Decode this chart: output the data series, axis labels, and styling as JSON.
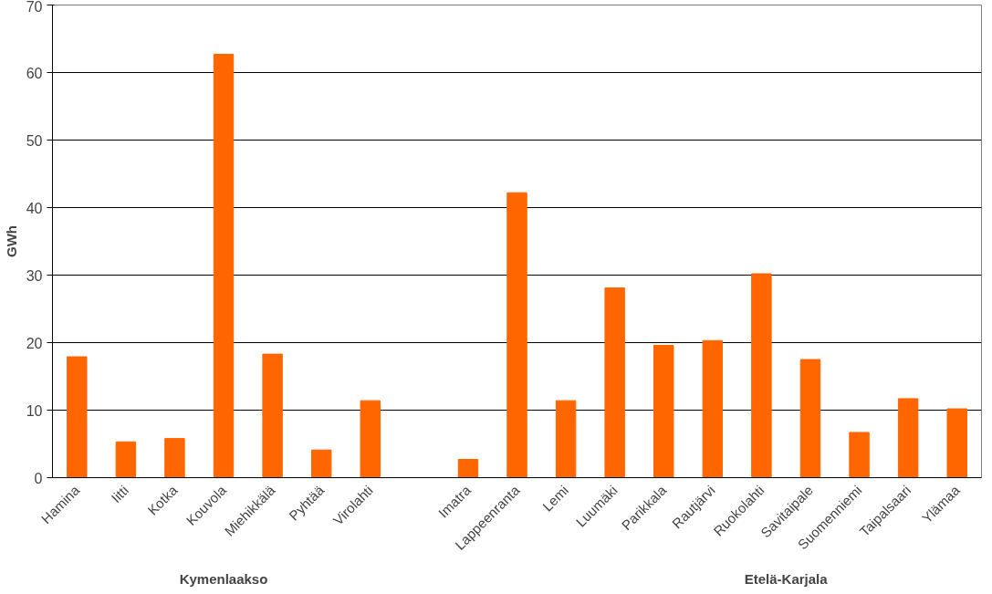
{
  "chart_data": {
    "type": "bar",
    "ylabel": "GWh",
    "categories": [
      "Hamina",
      "Iitti",
      "Kotka",
      "Kouvola",
      "Miehikkälä",
      "Pyhtää",
      "Virolahti",
      null,
      "Imatra",
      "Lappeenranta",
      "Lemi",
      "Luumäki",
      "Parikkala",
      "Rautjärvi",
      "Ruokolahti",
      "Savitaipale",
      "Suomenniemi",
      "Taipalsaari",
      "Ylämaa"
    ],
    "values": [
      17.9,
      5.3,
      5.8,
      62.7,
      18.3,
      4.1,
      11.4,
      null,
      2.7,
      42.2,
      11.4,
      28.1,
      19.6,
      20.3,
      30.2,
      17.5,
      6.7,
      11.7,
      10.2
    ],
    "color": "#ff6600",
    "ylim": [
      0,
      70
    ],
    "yticks": [
      0,
      10,
      20,
      30,
      40,
      50,
      60,
      70
    ],
    "grid": "y",
    "annotations": [
      "Kymenlaakso",
      "Etelä-Karjala"
    ]
  }
}
